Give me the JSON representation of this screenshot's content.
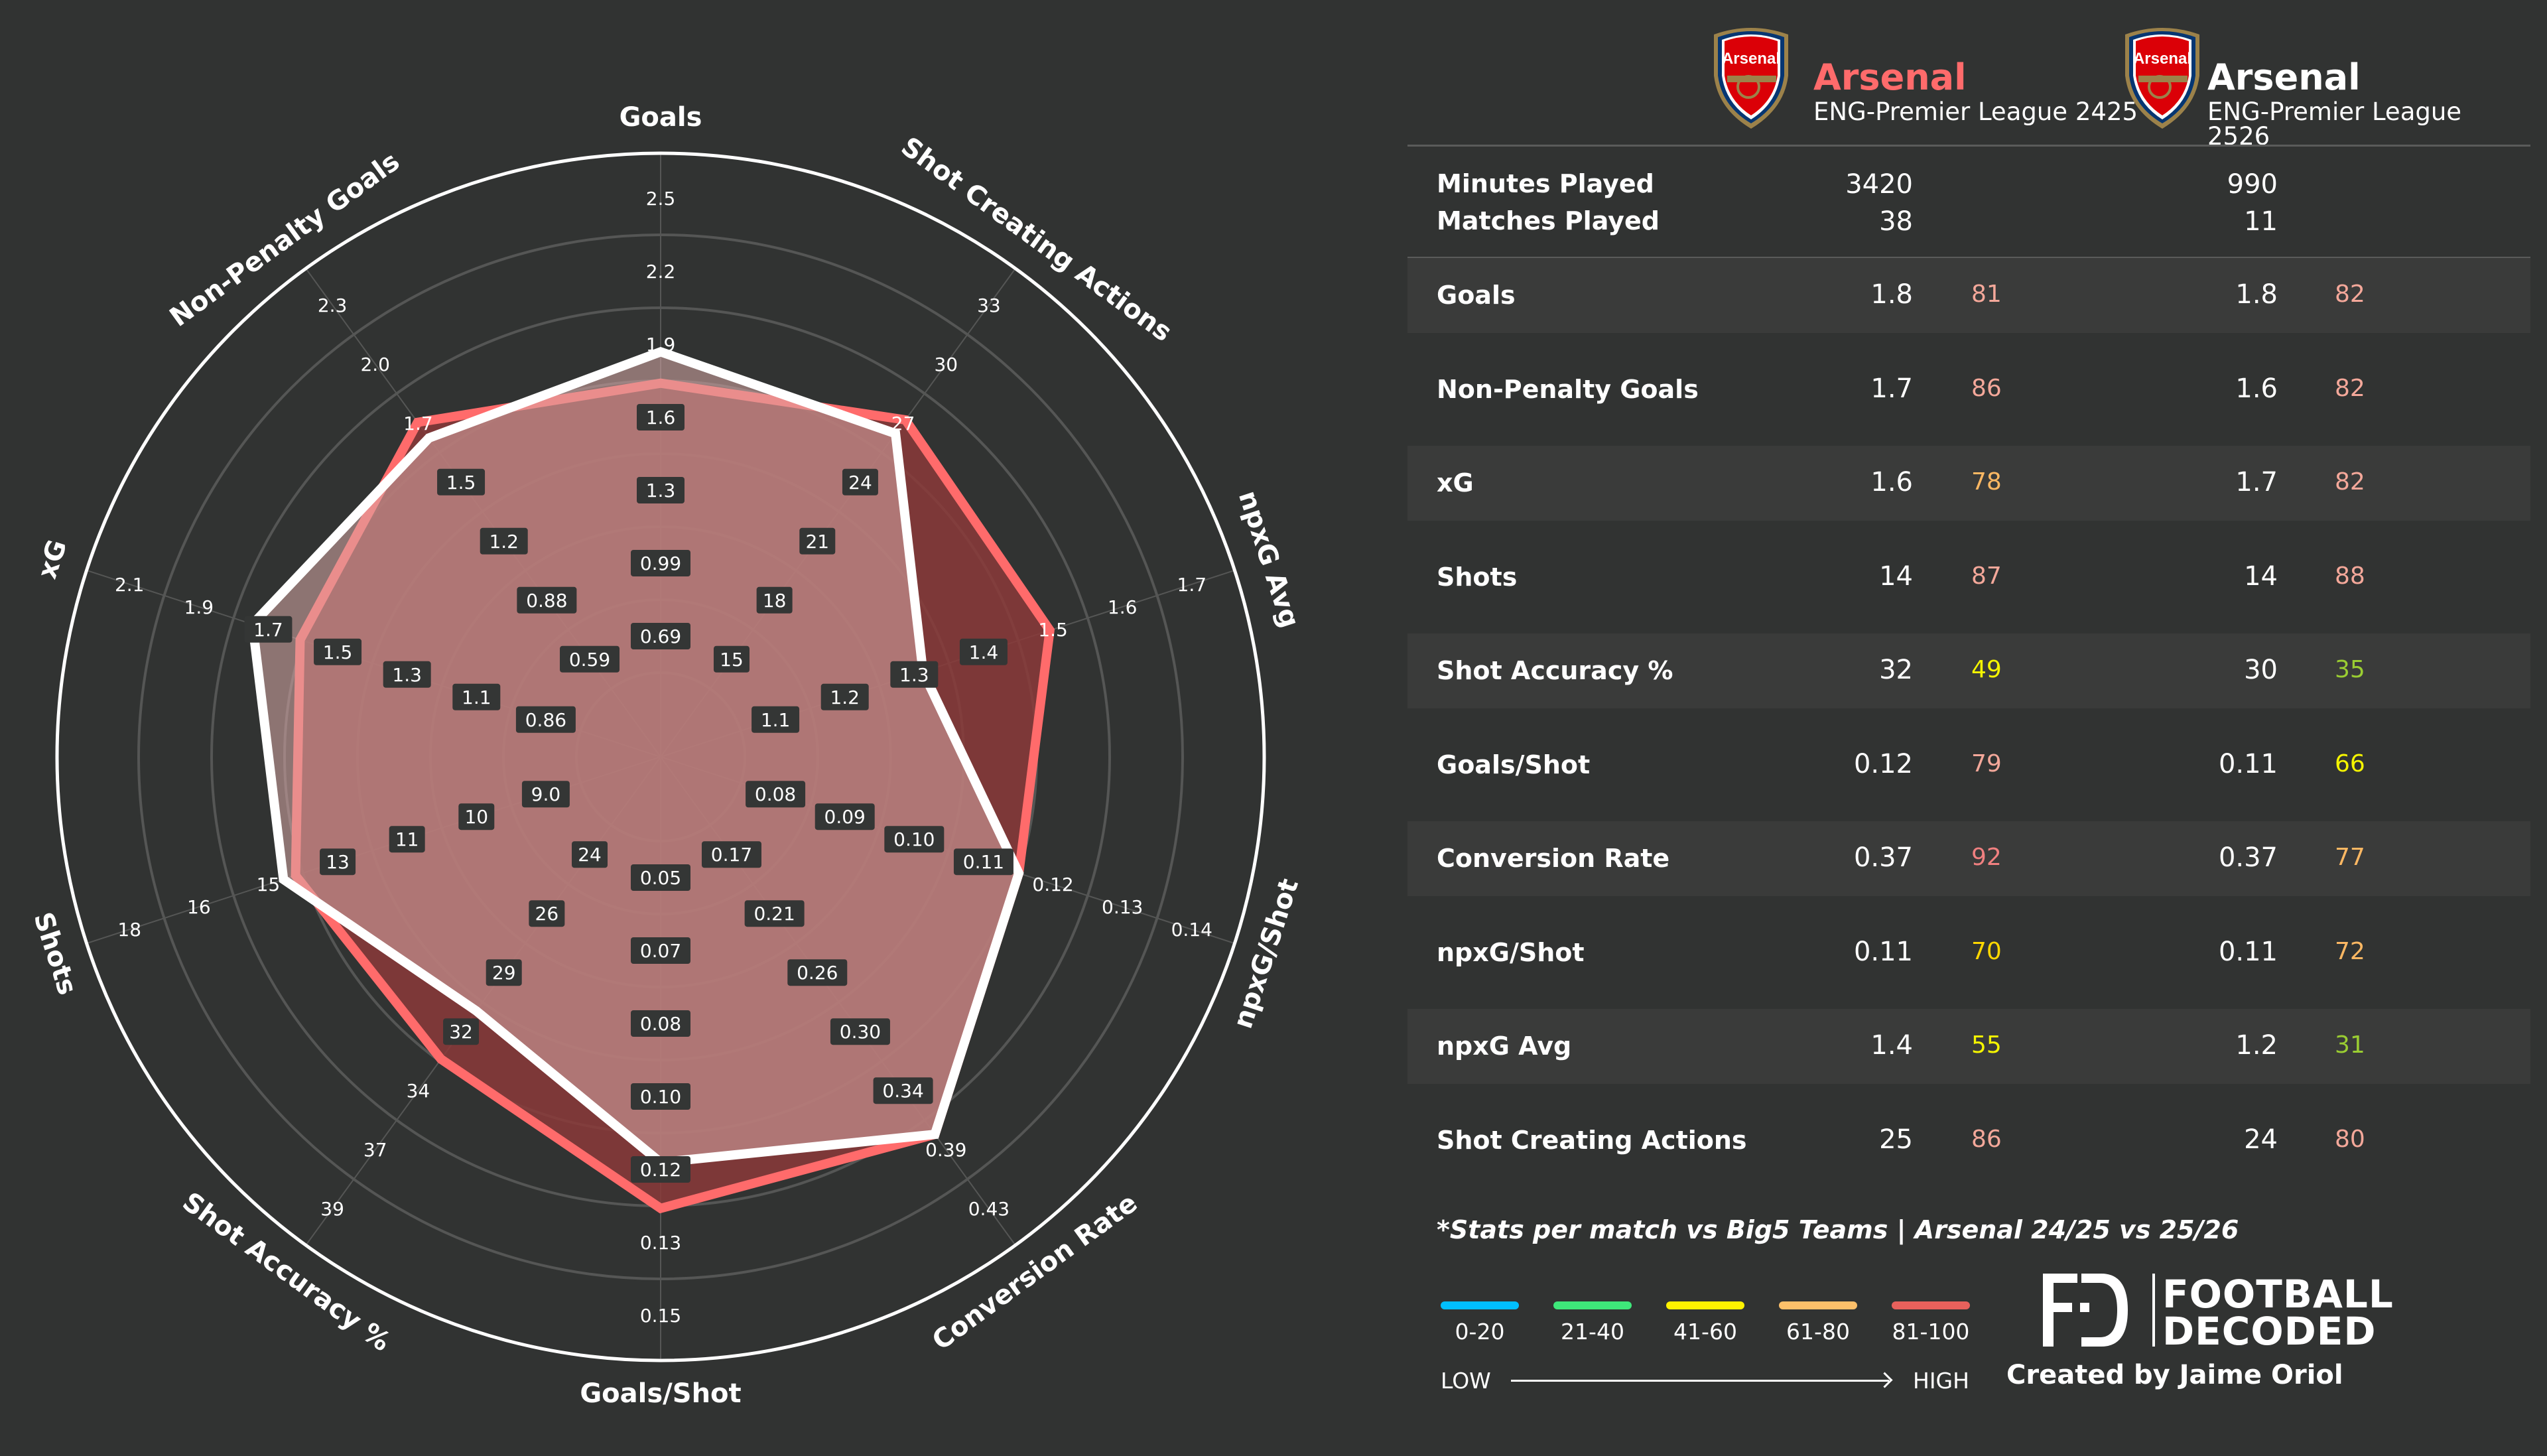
{
  "teams": [
    {
      "name": "Arsenal",
      "league": "ENG-Premier League 2425",
      "color": "#ff6b6b",
      "minutes": "3420",
      "matches": "38"
    },
    {
      "name": "Arsenal",
      "league": "ENG-Premier League 2526",
      "color": "#ffffff",
      "minutes": "990",
      "matches": "11"
    }
  ],
  "meta_labels": {
    "minutes": "Minutes Played",
    "matches": "Matches Played"
  },
  "stats": [
    {
      "label": "Goals",
      "a_val": "1.8",
      "a_pct": "81",
      "a_color": "#f4a89a",
      "b_val": "1.8",
      "b_pct": "82",
      "b_color": "#f4a89a"
    },
    {
      "label": "Non-Penalty Goals",
      "a_val": "1.7",
      "a_pct": "86",
      "a_color": "#f4a89a",
      "b_val": "1.6",
      "b_pct": "82",
      "b_color": "#f4a89a"
    },
    {
      "label": "xG",
      "a_val": "1.6",
      "a_pct": "78",
      "a_color": "#fdb863",
      "b_val": "1.7",
      "b_pct": "82",
      "b_color": "#f4a89a"
    },
    {
      "label": "Shots",
      "a_val": "14",
      "a_pct": "87",
      "a_color": "#f4a89a",
      "b_val": "14",
      "b_pct": "88",
      "b_color": "#f4a89a"
    },
    {
      "label": "Shot Accuracy %",
      "a_val": "32",
      "a_pct": "49",
      "a_color": "#f5f500",
      "b_val": "30",
      "b_pct": "35",
      "b_color": "#9acd32"
    },
    {
      "label": "Goals/Shot",
      "a_val": "0.12",
      "a_pct": "79",
      "a_color": "#f4a89a",
      "b_val": "0.11",
      "b_pct": "66",
      "b_color": "#f5f500"
    },
    {
      "label": "Conversion Rate",
      "a_val": "0.37",
      "a_pct": "92",
      "a_color": "#f08080",
      "b_val": "0.37",
      "b_pct": "77",
      "b_color": "#fdb863"
    },
    {
      "label": "npxG/Shot",
      "a_val": "0.11",
      "a_pct": "70",
      "a_color": "#ffd700",
      "b_val": "0.11",
      "b_pct": "72",
      "b_color": "#fdb863"
    },
    {
      "label": "npxG Avg",
      "a_val": "1.4",
      "a_pct": "55",
      "a_color": "#f5f500",
      "b_val": "1.2",
      "b_pct": "31",
      "b_color": "#9acd32"
    },
    {
      "label": "Shot Creating Actions",
      "a_val": "25",
      "a_pct": "86",
      "a_color": "#f4a89a",
      "b_val": "24",
      "b_pct": "80",
      "b_color": "#f4a89a"
    }
  ],
  "footnote": "*Stats per match vs Big5 Teams | Arsenal 24/25 vs 25/26",
  "legend": {
    "items": [
      {
        "label": "0-20",
        "color": "#00bfff"
      },
      {
        "label": "21-40",
        "color": "#3ee87a"
      },
      {
        "label": "41-60",
        "color": "#fff200"
      },
      {
        "label": "61-80",
        "color": "#fdc06a"
      },
      {
        "label": "81-100",
        "color": "#e8615c"
      }
    ],
    "low": "LOW",
    "high": "HIGH"
  },
  "branding": {
    "line1": "FOOTBALL",
    "line2": "DECODED",
    "credit": "Created by Jaime Oriol"
  },
  "crest": {
    "text": "Arsenal"
  },
  "chart_data": {
    "type": "radar",
    "title": "Arsenal 24/25 vs 25/26",
    "axes": [
      "Goals",
      "Shot Creating Actions",
      "npxG Avg",
      "npxG/Shot",
      "Conversion Rate",
      "Goals/Shot",
      "Shot Accuracy %",
      "Shots",
      "xG",
      "Non-Penalty Goals"
    ],
    "ticks": [
      [
        "0.69",
        "0.99",
        "1.3",
        "1.6",
        "1.9",
        "2.2",
        "2.5"
      ],
      [
        "15",
        "18",
        "21",
        "24",
        "27",
        "30",
        "33"
      ],
      [
        "1.1",
        "1.2",
        "1.3",
        "1.4",
        "1.5",
        "1.6",
        "1.7"
      ],
      [
        "0.08",
        "0.09",
        "0.10",
        "0.11",
        "0.12",
        "0.13",
        "0.14"
      ],
      [
        "0.17",
        "0.21",
        "0.26",
        "0.30",
        "0.34",
        "0.39",
        "0.43"
      ],
      [
        "0.05",
        "0.07",
        "0.08",
        "0.10",
        "0.12",
        "0.13",
        "0.15"
      ],
      [
        "24",
        "26",
        "29",
        "32",
        "34",
        "37",
        "39"
      ],
      [
        "9.0",
        "10",
        "11",
        "13",
        "15",
        "16",
        "18"
      ],
      [
        "0.86",
        "1.1",
        "1.3",
        "1.5",
        "1.7",
        "1.9",
        "2.1"
      ],
      [
        "0.59",
        "0.88",
        "1.2",
        "1.5",
        "1.7",
        "2.0",
        "2.3"
      ]
    ],
    "series": [
      {
        "name": "Arsenal ENG-Premier League 2425",
        "color": "#ff6b6b",
        "values": [
          1.8,
          25,
          1.4,
          0.11,
          0.37,
          0.12,
          32,
          14,
          1.6,
          1.7
        ],
        "radius_norm": [
          0.619,
          0.69,
          0.678,
          0.624,
          0.773,
          0.748,
          0.619,
          0.636,
          0.628,
          0.685
        ]
      },
      {
        "name": "Arsenal ENG-Premier League 2526",
        "color": "#ffffff",
        "values": [
          1.8,
          24,
          1.2,
          0.11,
          0.37,
          0.11,
          30,
          14,
          1.7,
          1.6
        ],
        "radius_norm": [
          0.671,
          0.662,
          0.457,
          0.624,
          0.773,
          0.672,
          0.52,
          0.657,
          0.711,
          0.653
        ]
      }
    ],
    "legend_position": "right panel",
    "grid": true
  }
}
